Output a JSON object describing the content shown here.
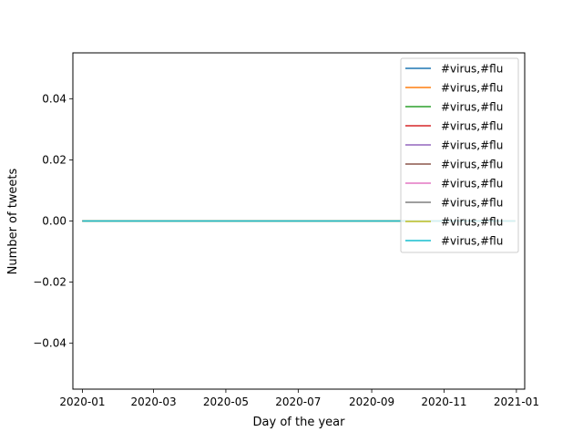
{
  "chart_data": {
    "type": "line",
    "title": "",
    "xlabel": "Day of the year",
    "ylabel": "Number of tweets",
    "xlim": [
      "2019-12-24",
      "2021-01-08"
    ],
    "ylim": [
      -0.055,
      0.055
    ],
    "x_ticks": [
      "2020-01",
      "2020-03",
      "2020-05",
      "2020-07",
      "2020-09",
      "2020-11",
      "2021-01"
    ],
    "y_ticks": [
      {
        "value": 0.04,
        "label": "0.04"
      },
      {
        "value": 0.02,
        "label": "0.02"
      },
      {
        "value": 0.0,
        "label": "0.00"
      },
      {
        "value": -0.02,
        "label": "−0.02"
      },
      {
        "value": -0.04,
        "label": "−0.04"
      }
    ],
    "grid": false,
    "legend_position": "top-right",
    "x": [
      "2020-01-01",
      "2020-12-31"
    ],
    "series": [
      {
        "name": "#virus,#flu",
        "color": "#1f77b4",
        "values": [
          0,
          0
        ]
      },
      {
        "name": "#virus,#flu",
        "color": "#ff7f0e",
        "values": [
          0,
          0
        ]
      },
      {
        "name": "#virus,#flu",
        "color": "#2ca02c",
        "values": [
          0,
          0
        ]
      },
      {
        "name": "#virus,#flu",
        "color": "#d62728",
        "values": [
          0,
          0
        ]
      },
      {
        "name": "#virus,#flu",
        "color": "#9467bd",
        "values": [
          0,
          0
        ]
      },
      {
        "name": "#virus,#flu",
        "color": "#8c564b",
        "values": [
          0,
          0
        ]
      },
      {
        "name": "#virus,#flu",
        "color": "#e377c2",
        "values": [
          0,
          0
        ]
      },
      {
        "name": "#virus,#flu",
        "color": "#7f7f7f",
        "values": [
          0,
          0
        ]
      },
      {
        "name": "#virus,#flu",
        "color": "#bcbd22",
        "values": [
          0,
          0
        ]
      },
      {
        "name": "#virus,#flu",
        "color": "#17becf",
        "values": [
          0,
          0
        ]
      }
    ]
  }
}
